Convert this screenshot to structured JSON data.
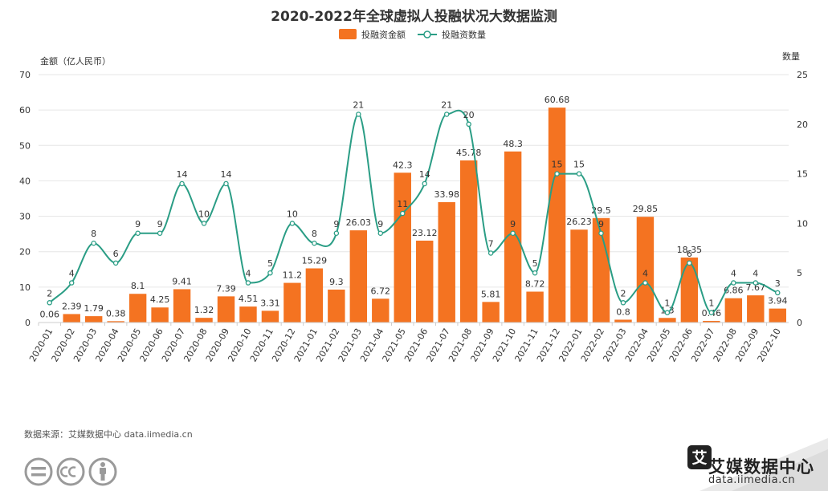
{
  "source": "数据来源：艾媒数据中心 data.iimedia.cn",
  "brand": {
    "name": "艾媒数据中心",
    "url": "data.iimedia.cn",
    "logo_char": "艾"
  },
  "colors": {
    "bar": "#f47321",
    "line": "#2a9d85",
    "grid": "#e6e6e6",
    "text": "#333333"
  },
  "chart_data": {
    "type": "bar",
    "title": "2020-2022年全球虚拟人投融状况大数据监测",
    "ylabel_left": "金额（亿人民币）",
    "ylabel_right": "数量",
    "ylim_left": [
      0,
      70
    ],
    "ylim_right": [
      0,
      25
    ],
    "yticks_left": [
      "0",
      "10",
      "20",
      "30",
      "40",
      "50",
      "60",
      "70"
    ],
    "yticks_right": [
      "0",
      "5",
      "10",
      "15",
      "20",
      "25"
    ],
    "grid": true,
    "legend_position": "top",
    "categories": [
      "2020-01",
      "2020-02",
      "2020-03",
      "2020-04",
      "2020-05",
      "2020-06",
      "2020-07",
      "2020-08",
      "2020-09",
      "2020-10",
      "2020-11",
      "2020-12",
      "2021-01",
      "2021-02",
      "2021-03",
      "2021-04",
      "2021-05",
      "2021-06",
      "2021-07",
      "2021-08",
      "2021-09",
      "2021-10",
      "2021-11",
      "2021-12",
      "2022-01",
      "2022-02",
      "2022-03",
      "2022-04",
      "2022-05",
      "2022-06",
      "2022-07",
      "2022-08",
      "2022-09",
      "2022-10"
    ],
    "series": [
      {
        "name": "投融资金额",
        "type": "bar",
        "axis": "left",
        "values": [
          0.06,
          2.39,
          1.79,
          0.38,
          8.1,
          4.25,
          9.41,
          1.32,
          7.39,
          4.51,
          3.31,
          11.2,
          15.29,
          9.3,
          26.03,
          6.72,
          42.3,
          23.12,
          33.98,
          45.78,
          5.81,
          48.3,
          8.72,
          60.68,
          26.23,
          29.5,
          0.8,
          29.85,
          1.3,
          18.35,
          0.46,
          6.86,
          7.67,
          3.94
        ]
      },
      {
        "name": "投融资数量",
        "type": "line",
        "axis": "right",
        "values": [
          2,
          4,
          8,
          6,
          9,
          9,
          14,
          10,
          14,
          4,
          5,
          10,
          8,
          9,
          21,
          9,
          11,
          14,
          21,
          20,
          7,
          9,
          5,
          15,
          15,
          9,
          2,
          4,
          1,
          6,
          1,
          4,
          4,
          3
        ]
      }
    ]
  }
}
